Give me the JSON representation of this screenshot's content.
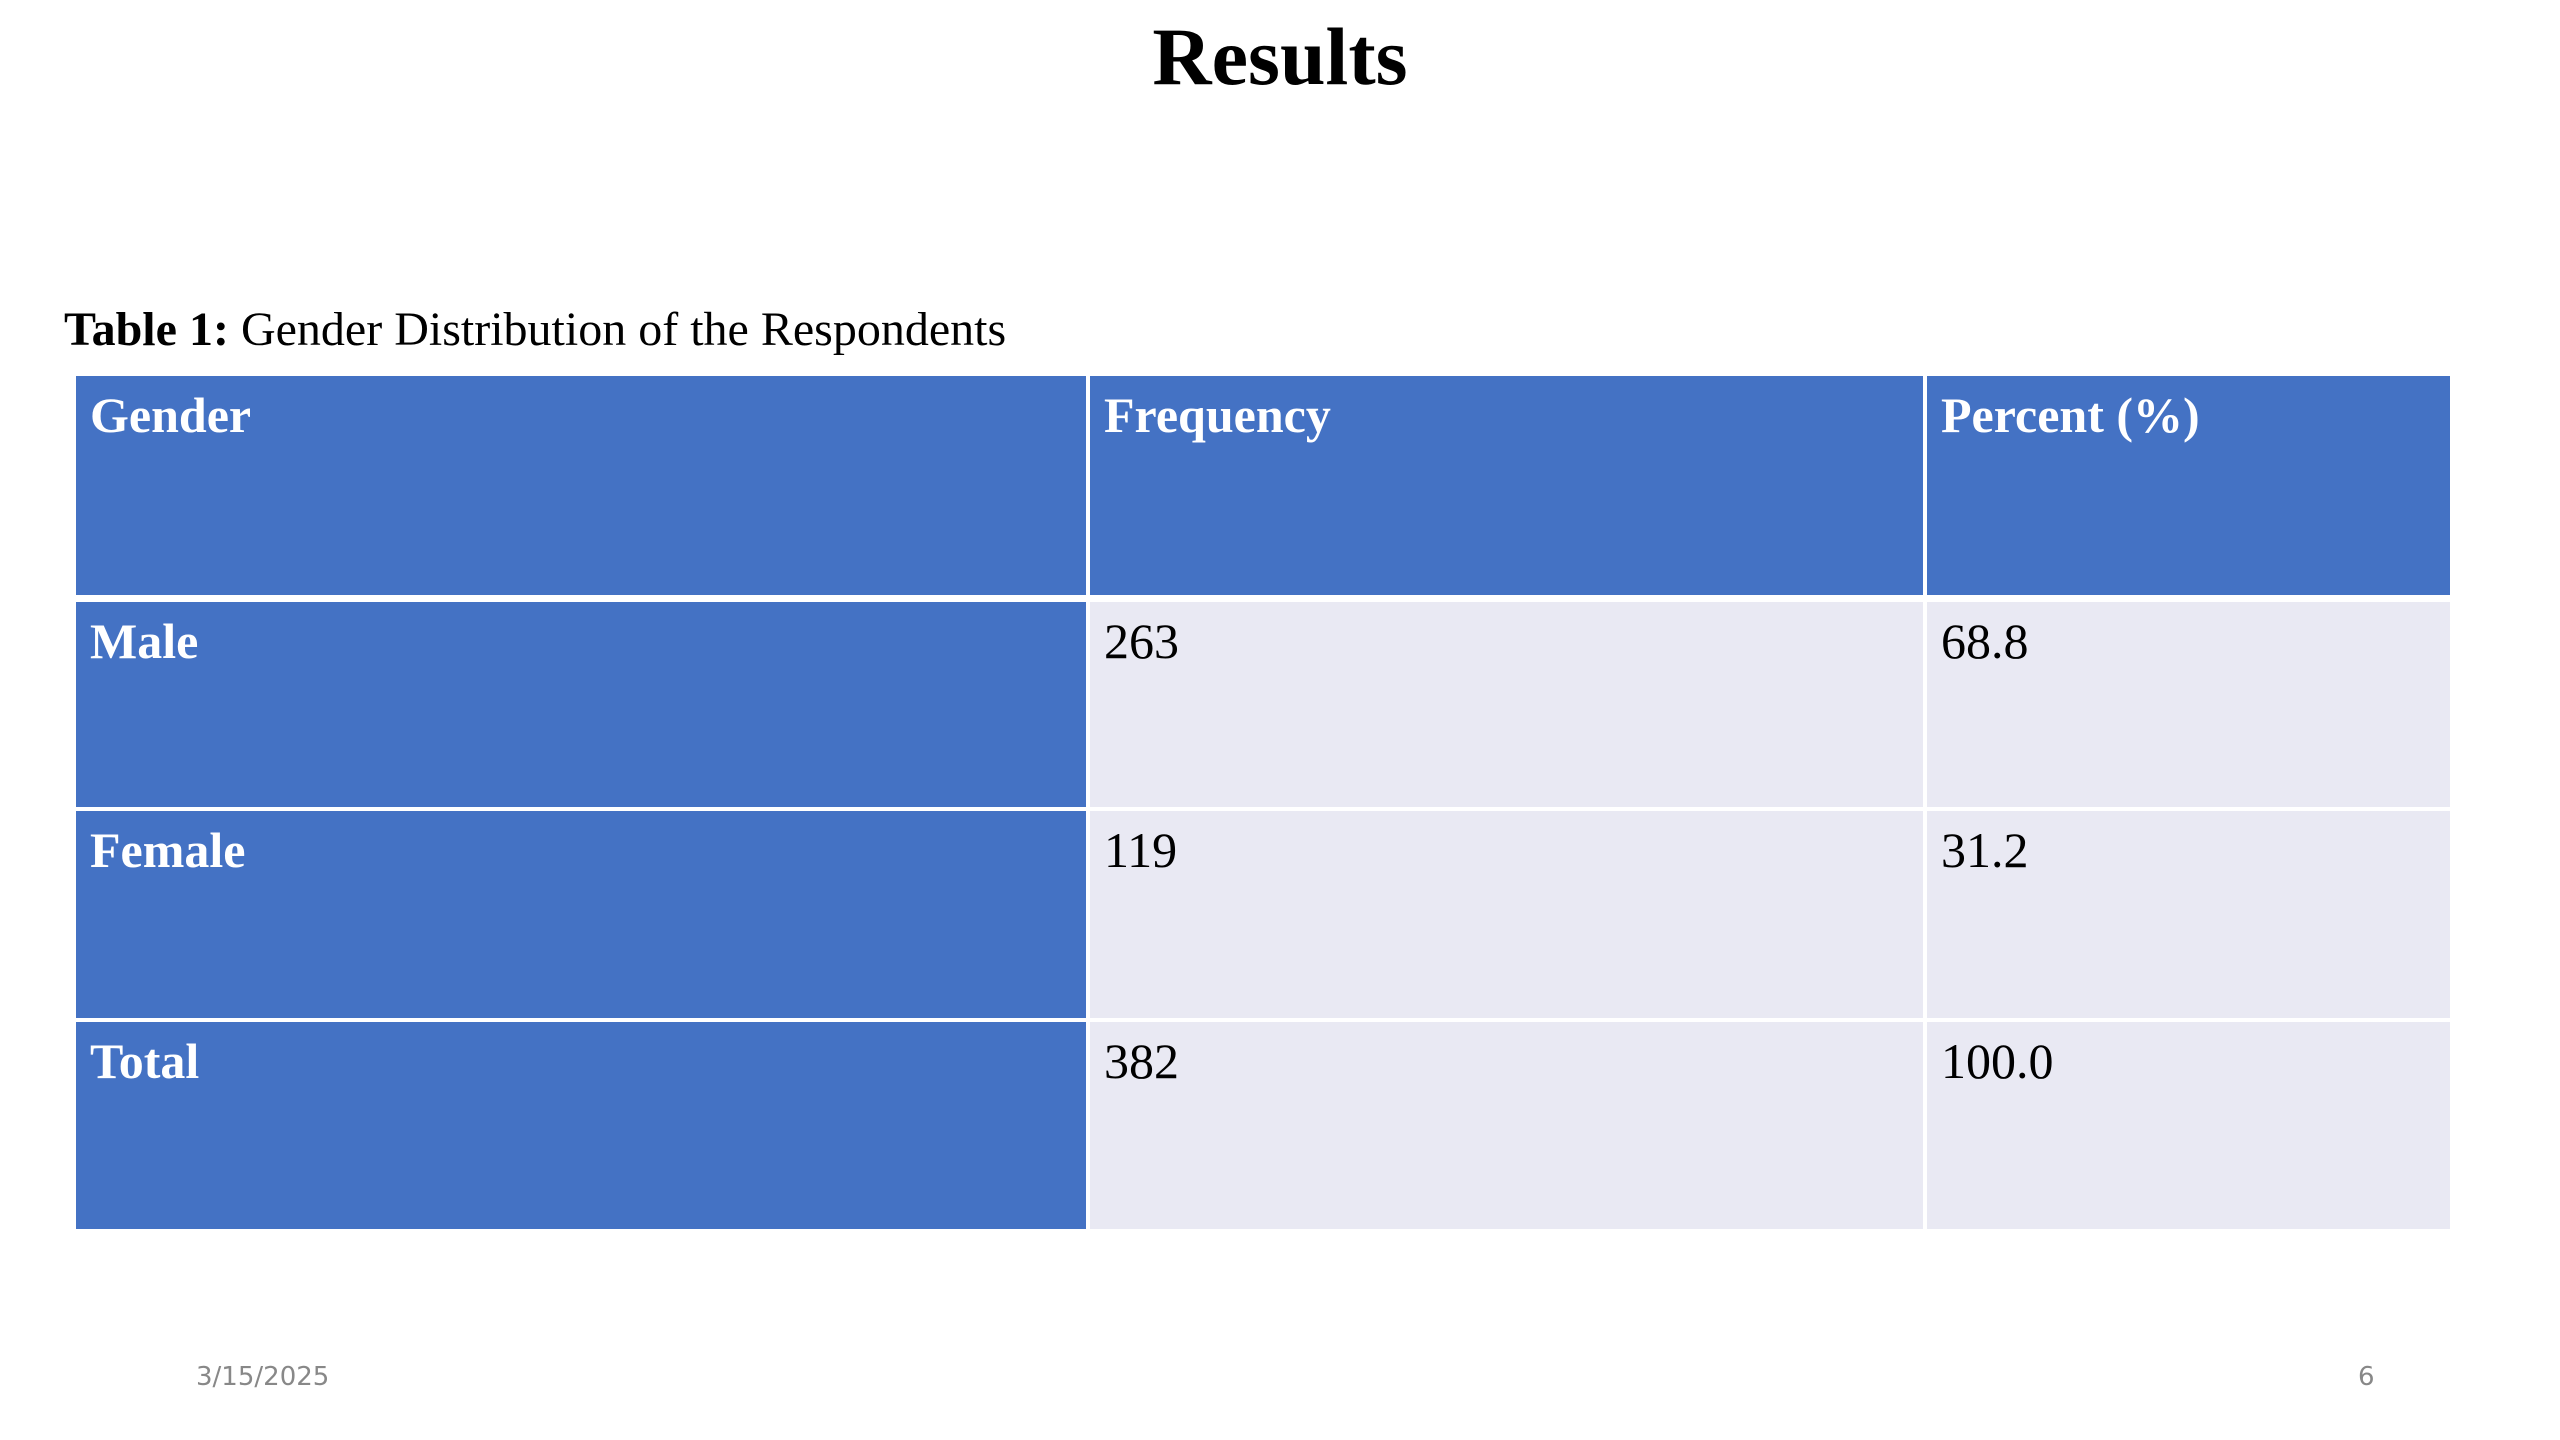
{
  "title": "Results",
  "caption": {
    "label": "Table 1:",
    "text": "Gender Distribution of the Respondents"
  },
  "table": {
    "header": [
      "Gender",
      "Frequency",
      "Percent (%)"
    ],
    "rows": [
      [
        "Male",
        "263",
        "68.8"
      ],
      [
        "Female",
        "119",
        "31.2"
      ],
      [
        "Total",
        "382",
        "100.0"
      ]
    ]
  },
  "footer": {
    "date": "3/15/2025",
    "page": "6"
  }
}
